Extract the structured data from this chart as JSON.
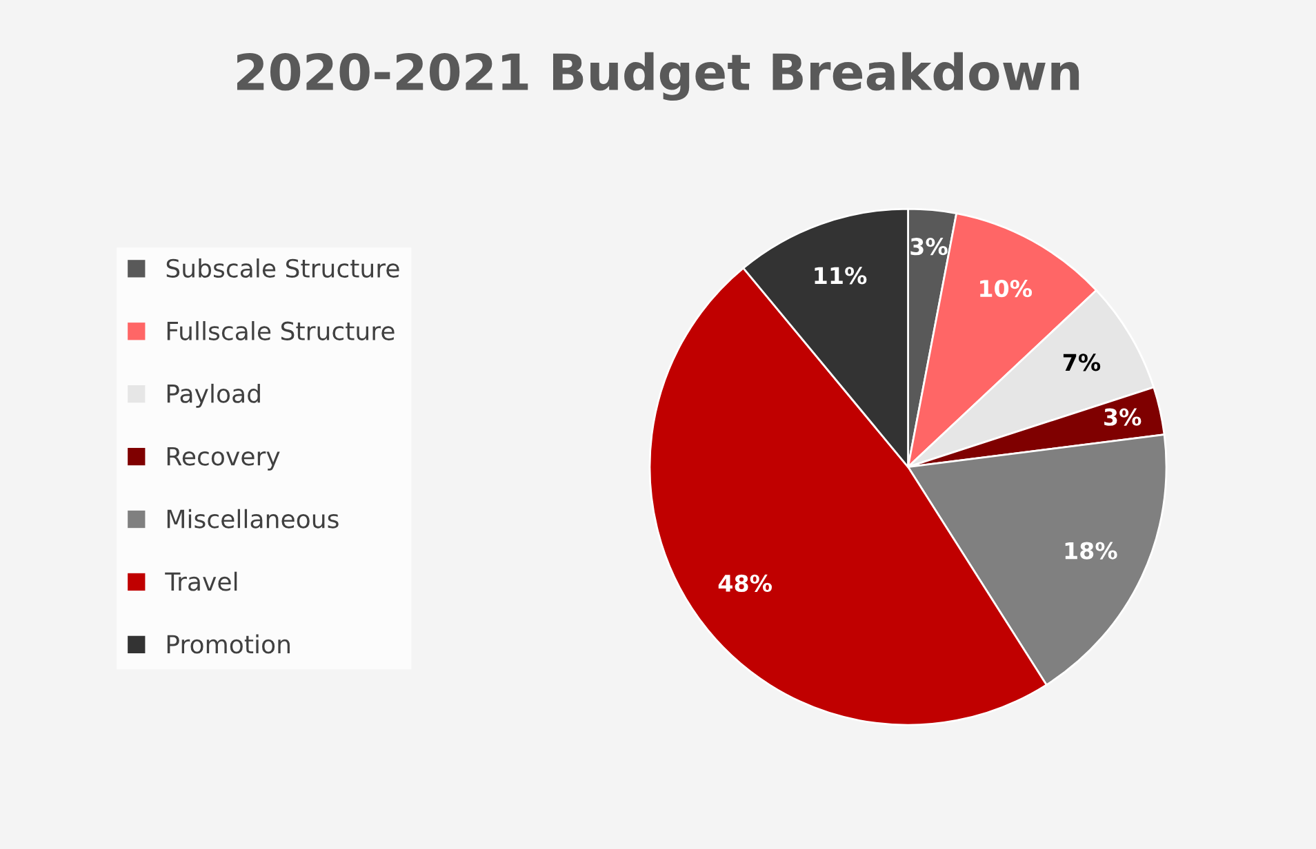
{
  "chart_data": {
    "type": "pie",
    "title": "2020-2021 Budget Breakdown",
    "categories": [
      "Subscale Structure",
      "Fullscale Structure",
      "Payload",
      "Recovery",
      "Miscellaneous",
      "Travel",
      "Promotion"
    ],
    "values": [
      3,
      10,
      7,
      3,
      18,
      48,
      11
    ],
    "colors": [
      "#595959",
      "#ff6666",
      "#e6e6e6",
      "#7f0000",
      "#808080",
      "#c00000",
      "#333333"
    ],
    "value_labels": [
      "3%",
      "10%",
      "7%",
      "3%",
      "18%",
      "48%",
      "11%"
    ],
    "legend": "left"
  }
}
